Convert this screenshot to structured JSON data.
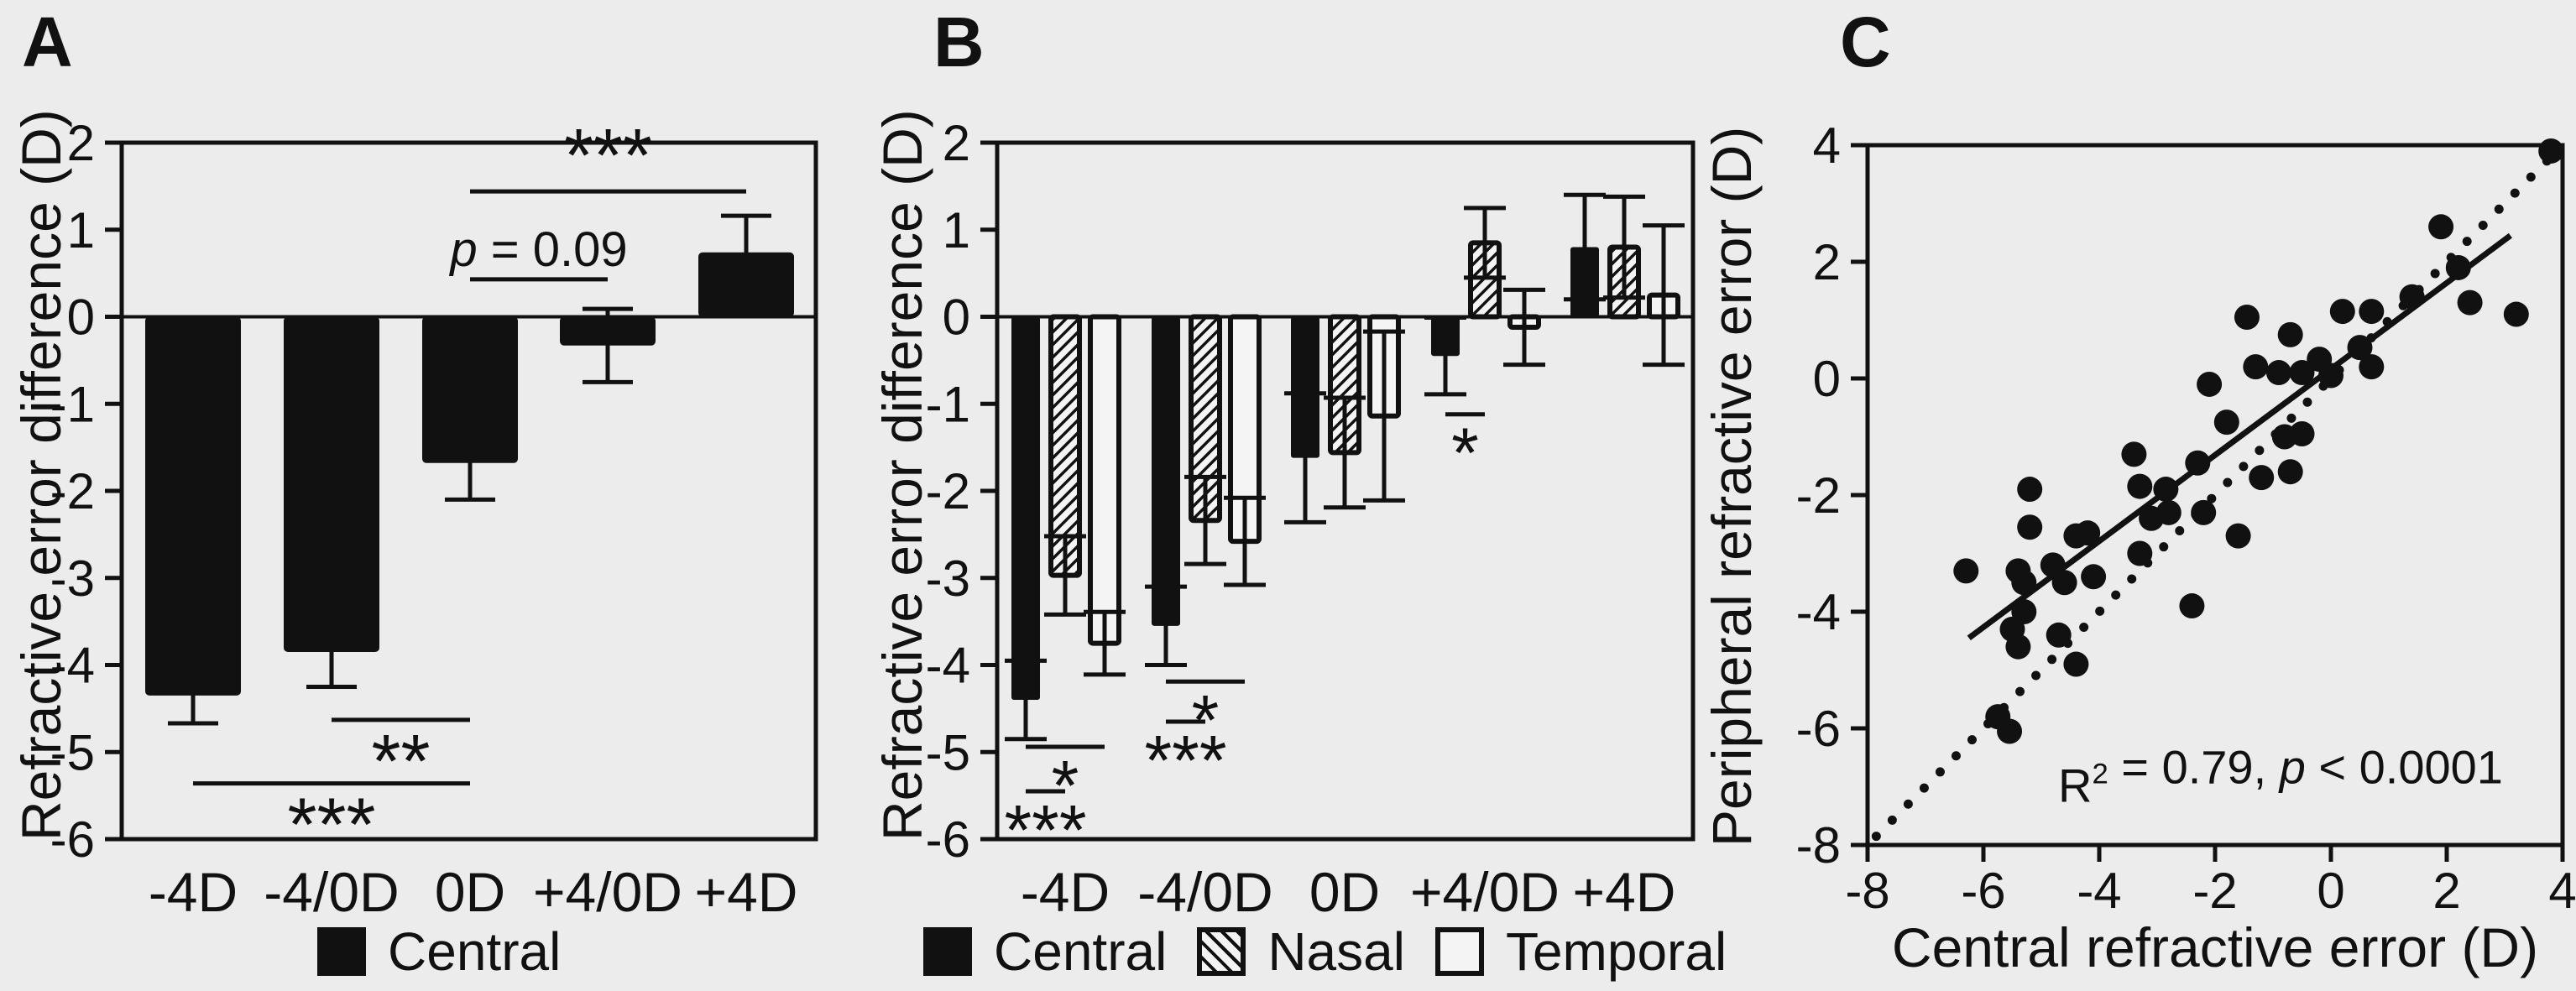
{
  "figure": {
    "background": "#ececec",
    "ink_color": "#111111",
    "bar_fill": "#111111",
    "open_bar_fill": "#f4f4f4"
  },
  "chart_data": [
    {
      "panel": "A",
      "type": "bar",
      "ylabel": "Refractive error difference (D)",
      "xlabel": "",
      "categories": [
        "-4D",
        "-4/0D",
        "0D",
        "+4/0D",
        "+4D"
      ],
      "values": [
        -4.35,
        -3.85,
        -1.68,
        -0.33,
        0.74
      ],
      "errors": [
        0.32,
        0.4,
        0.42,
        0.42,
        0.42
      ],
      "ylim": [
        -6,
        2
      ],
      "yticks": [
        2,
        1,
        0,
        -1,
        -2,
        -3,
        -4,
        -5,
        -6
      ],
      "grid": false,
      "legend": [
        {
          "label": "Central",
          "style": "solid"
        }
      ],
      "significance": [
        {
          "from": "0D",
          "to": "+4D",
          "y": 1.44,
          "label": "***",
          "side": "above"
        },
        {
          "from": "0D",
          "to": "+4/0D",
          "y": 0.43,
          "side": "above",
          "kind": "ptext",
          "label_segments": [
            {
              "t": "p",
              "italic": true
            },
            {
              "t": " = 0.09"
            }
          ]
        },
        {
          "from": "-4/0D",
          "to": "0D",
          "y": -4.63,
          "label": "**",
          "side": "below"
        },
        {
          "from": "-4D",
          "to": "0D",
          "y": -5.36,
          "label": "***",
          "side": "below"
        }
      ]
    },
    {
      "panel": "B",
      "type": "grouped-bar",
      "ylabel": "Refractive error difference (D)",
      "xlabel": "",
      "categories": [
        "-4D",
        "-4/0D",
        "0D",
        "+4/0D",
        "+4D"
      ],
      "series": [
        {
          "name": "Central",
          "style": "solid",
          "values": [
            -4.4,
            -3.55,
            -1.62,
            -0.45,
            0.8
          ],
          "errors": [
            0.45,
            0.45,
            0.74,
            0.44,
            0.6
          ]
        },
        {
          "name": "Nasal",
          "style": "hatched",
          "values": [
            -2.97,
            -2.34,
            -1.56,
            0.85,
            0.8
          ],
          "errors": [
            0.45,
            0.5,
            0.63,
            0.4,
            0.58
          ]
        },
        {
          "name": "Temporal",
          "style": "open",
          "values": [
            -3.75,
            -2.58,
            -1.14,
            -0.12,
            0.25
          ],
          "errors": [
            0.36,
            0.5,
            0.97,
            0.43,
            0.8
          ]
        }
      ],
      "ylim": [
        -6,
        2
      ],
      "yticks": [
        2,
        1,
        0,
        -1,
        -2,
        -3,
        -4,
        -5,
        -6
      ],
      "grid": false,
      "significance": [
        {
          "category": "-4D",
          "from": "Central",
          "to": "Temporal",
          "y": -4.94,
          "label": "*"
        },
        {
          "category": "-4D",
          "from": "Central",
          "to": "Nasal",
          "y": -5.45,
          "label": "***"
        },
        {
          "category": "-4/0D",
          "from": "Central",
          "to": "Temporal",
          "y": -4.19,
          "label": "*"
        },
        {
          "category": "-4/0D",
          "from": "Central",
          "to": "Nasal",
          "y": -4.65,
          "label": "***"
        },
        {
          "category": "+4/0D",
          "from": "Central",
          "to": "Nasal",
          "y": -1.12,
          "label": "*"
        }
      ]
    },
    {
      "panel": "C",
      "type": "scatter",
      "xlabel": "Central refractive error (D)",
      "ylabel": "Peripheral refractive error (D)",
      "xlim": [
        -8,
        4
      ],
      "ylim": [
        -8,
        4
      ],
      "xticks": [
        -8,
        -6,
        -4,
        -2,
        0,
        2,
        4
      ],
      "yticks": [
        4,
        2,
        0,
        -2,
        -4,
        -6,
        -8
      ],
      "grid": false,
      "points": [
        [
          -6.3,
          -3.3
        ],
        [
          -5.75,
          -5.8
        ],
        [
          -5.55,
          -6.05
        ],
        [
          -5.5,
          -4.3
        ],
        [
          -5.4,
          -4.6
        ],
        [
          -5.4,
          -3.3
        ],
        [
          -5.3,
          -3.5
        ],
        [
          -5.3,
          -4.0
        ],
        [
          -5.2,
          -1.9
        ],
        [
          -5.2,
          -2.55
        ],
        [
          -4.8,
          -3.2
        ],
        [
          -4.7,
          -4.4
        ],
        [
          -4.6,
          -3.5
        ],
        [
          -4.4,
          -2.7
        ],
        [
          -4.2,
          -2.65
        ],
        [
          -4.4,
          -4.9
        ],
        [
          -4.1,
          -3.4
        ],
        [
          -3.4,
          -1.3
        ],
        [
          -3.3,
          -1.85
        ],
        [
          -3.3,
          -3.0
        ],
        [
          -3.1,
          -2.4
        ],
        [
          -2.85,
          -1.9
        ],
        [
          -2.8,
          -2.3
        ],
        [
          -2.3,
          -1.45
        ],
        [
          -2.2,
          -2.3
        ],
        [
          -2.4,
          -3.9
        ],
        [
          -1.6,
          -2.7
        ],
        [
          -1.2,
          -1.7
        ],
        [
          -0.7,
          -1.6
        ],
        [
          -0.8,
          -1.0
        ],
        [
          -0.5,
          -0.95
        ],
        [
          -1.8,
          -0.75
        ],
        [
          -2.1,
          -0.1
        ],
        [
          -1.45,
          1.05
        ],
        [
          -1.3,
          0.2
        ],
        [
          -0.9,
          0.1
        ],
        [
          -0.5,
          0.1
        ],
        [
          -0.2,
          0.33
        ],
        [
          0.0,
          0.05
        ],
        [
          0.5,
          0.53
        ],
        [
          0.7,
          0.2
        ],
        [
          -0.7,
          0.75
        ],
        [
          0.2,
          1.15
        ],
        [
          0.7,
          1.15
        ],
        [
          1.4,
          1.4
        ],
        [
          1.9,
          2.6
        ],
        [
          2.2,
          1.9
        ],
        [
          2.4,
          1.3
        ],
        [
          3.2,
          1.1
        ],
        [
          3.8,
          3.9
        ]
      ],
      "regression_line": {
        "x1": -6.25,
        "y1": -4.45,
        "x2": 3.1,
        "y2": 2.45,
        "style": "solid"
      },
      "identity_line": {
        "x1": -7.85,
        "y1": -7.85,
        "x2": 3.95,
        "y2": 3.95,
        "style": "dotted"
      },
      "annotation": {
        "x": -0.87,
        "y": -7.0,
        "segments": [
          {
            "t": "R"
          },
          {
            "t": "2",
            "sup": true
          },
          {
            "t": " = 0.79, "
          },
          {
            "t": "p",
            "italic": true
          },
          {
            "t": " < 0.0001"
          }
        ]
      }
    }
  ]
}
